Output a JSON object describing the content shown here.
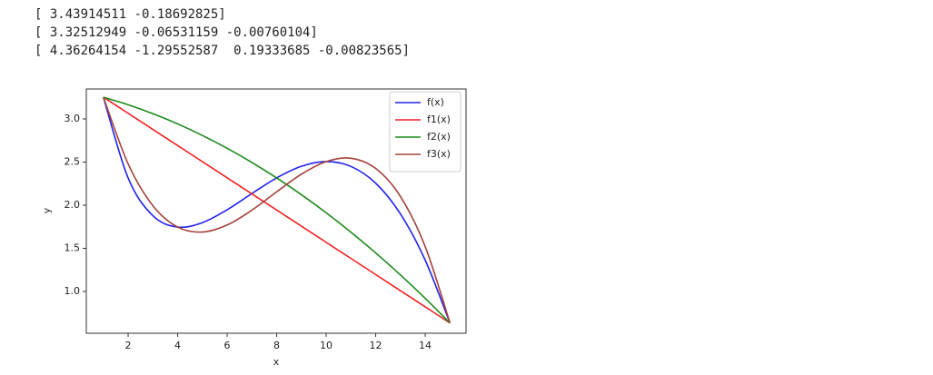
{
  "output_lines": [
    "[ 3.43914511 -0.18692825]",
    "[ 3.32512949 -0.06531159 -0.00760104]",
    "[ 4.36264154 -1.29552587  0.19333685 -0.00823565]"
  ],
  "chart_data": {
    "type": "line",
    "x_label": "x",
    "y_label": "y",
    "x": [
      1,
      2,
      3,
      4,
      5,
      6,
      7,
      8,
      9,
      10,
      11,
      12,
      13,
      14,
      15
    ],
    "series": [
      {
        "name": "f(x)",
        "color": "#2222ee",
        "values": [
          3.2523,
          2.315,
          1.8779,
          1.7469,
          1.7978,
          1.9471,
          2.1354,
          2.3162,
          2.4507,
          2.5054,
          2.4493,
          2.2551,
          1.899,
          1.3631,
          0.6352
        ]
      },
      {
        "name": "f1(x)",
        "color": "#ee2222",
        "values": [
          3.2522,
          3.0653,
          2.8784,
          2.6914,
          2.5045,
          2.3176,
          2.1307,
          1.9438,
          1.7568,
          1.5699,
          1.383,
          1.196,
          1.0091,
          0.8222,
          0.6352
        ]
      },
      {
        "name": "f2(x)",
        "color": "#1a8a1a",
        "values": [
          3.2522,
          3.1641,
          3.0608,
          2.9423,
          2.8085,
          2.6596,
          2.4954,
          2.3161,
          2.1216,
          1.9119,
          1.687,
          1.4469,
          1.1915,
          0.9209,
          0.6352
        ]
      },
      {
        "name": "f3(x)",
        "color": "#a5403a",
        "values": [
          3.2522,
          2.479,
          1.9937,
          1.7468,
          1.6889,
          1.7706,
          1.9426,
          2.1553,
          2.3594,
          2.5053,
          2.5439,
          2.4256,
          2.1009,
          1.5204,
          0.6352
        ]
      }
    ],
    "xlim": [
      0.31,
      15.65
    ],
    "ylim": [
      0.516,
      3.347
    ],
    "xticks": [
      2,
      4,
      6,
      8,
      10,
      12,
      14
    ],
    "yticks": [
      {
        "value": 1,
        "label": "1.0"
      },
      {
        "value": 1.5,
        "label": "1.5"
      },
      {
        "value": 2,
        "label": "2.0"
      },
      {
        "value": 2.5,
        "label": "2.5"
      },
      {
        "value": 3,
        "label": "3.0"
      }
    ],
    "legend": "upper right",
    "grid": false
  }
}
